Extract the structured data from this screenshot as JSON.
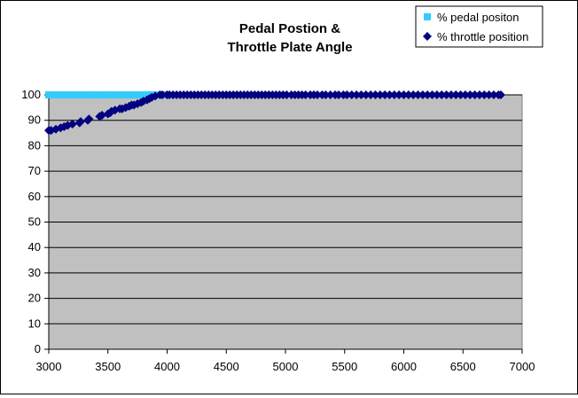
{
  "chart_data": {
    "type": "scatter",
    "title_lines": [
      "Pedal Postion &",
      "Throttle Plate Angle"
    ],
    "xlim": [
      3000,
      7000
    ],
    "ylim": [
      0,
      100
    ],
    "x_ticks": [
      "3000",
      "3500",
      "4000",
      "4500",
      "5000",
      "5500",
      "6000",
      "6500",
      "7000"
    ],
    "y_ticks": [
      "0",
      "10",
      "20",
      "30",
      "40",
      "50",
      "60",
      "70",
      "80",
      "90",
      "100"
    ],
    "grid": true,
    "legend_position": "top-right",
    "plot_bg": "#c0c0c0",
    "series": [
      {
        "name": "% pedal positon",
        "marker": "square",
        "color": "#33ccff",
        "x": [
          3000,
          3020,
          3040,
          3060,
          3080,
          3100,
          3120,
          3140,
          3160,
          3180,
          3200,
          3220,
          3260,
          3280,
          3300,
          3320,
          3340,
          3360,
          3420,
          3440,
          3460,
          3520,
          3540,
          3560,
          3600,
          3620,
          3640,
          3660,
          3680,
          3700,
          3720,
          3740,
          3760,
          3780,
          3800,
          3820,
          3840,
          3860,
          3880,
          3900,
          3920,
          3940,
          3960,
          3980,
          4000
        ],
        "y": [
          100,
          100,
          100,
          100,
          100,
          100,
          100,
          100,
          100,
          100,
          100,
          100,
          100,
          100,
          100,
          100,
          100,
          100,
          100,
          100,
          100,
          100,
          100,
          100,
          100,
          100,
          100,
          100,
          100,
          100,
          100,
          100,
          100,
          100,
          100,
          100,
          100,
          100,
          100,
          100,
          100,
          100,
          100,
          100,
          100
        ]
      },
      {
        "name": "% throttle position",
        "marker": "diamond",
        "color": "#000080",
        "x": [
          3000,
          3020,
          3060,
          3100,
          3130,
          3160,
          3200,
          3260,
          3270,
          3330,
          3340,
          3430,
          3450,
          3500,
          3520,
          3530,
          3560,
          3600,
          3620,
          3650,
          3680,
          3700,
          3720,
          3750,
          3780,
          3800,
          3830,
          3850,
          3870,
          3900,
          3940,
          3960,
          4000,
          4020,
          4050,
          4080,
          4110,
          4140,
          4170,
          4200,
          4230,
          4260,
          4290,
          4320,
          4350,
          4380,
          4410,
          4440,
          4470,
          4500,
          4530,
          4560,
          4590,
          4620,
          4650,
          4680,
          4710,
          4740,
          4770,
          4800,
          4830,
          4860,
          4890,
          4920,
          4950,
          4980,
          5010,
          5050,
          5080,
          5110,
          5140,
          5170,
          5210,
          5240,
          5270,
          5310,
          5340,
          5380,
          5420,
          5450,
          5490,
          5520,
          5560,
          5600,
          5640,
          5680,
          5720,
          5760,
          5800,
          5840,
          5880,
          5920,
          5960,
          6000,
          6040,
          6080,
          6120,
          6160,
          6200,
          6240,
          6280,
          6320,
          6360,
          6400,
          6440,
          6480,
          6520,
          6560,
          6600,
          6640,
          6680,
          6720,
          6760,
          6800,
          6820
        ],
        "y": [
          86,
          86,
          86.5,
          87,
          87.5,
          88,
          88.5,
          89,
          89.5,
          90,
          90.5,
          91.5,
          92,
          92.5,
          93,
          93.5,
          94,
          94.5,
          94.5,
          95,
          95.5,
          96,
          96,
          96.5,
          97,
          97.5,
          98,
          98.5,
          99,
          99.5,
          100,
          100,
          100,
          100,
          100,
          100,
          100,
          100,
          100,
          100,
          100,
          100,
          100,
          100,
          100,
          100,
          100,
          100,
          100,
          100,
          100,
          100,
          100,
          100,
          100,
          100,
          100,
          100,
          100,
          100,
          100,
          100,
          100,
          100,
          100,
          100,
          100,
          100,
          100,
          100,
          100,
          100,
          100,
          100,
          100,
          100,
          100,
          100,
          100,
          100,
          100,
          100,
          100,
          100,
          100,
          100,
          100,
          100,
          100,
          100,
          100,
          100,
          100,
          100,
          100,
          100,
          100,
          100,
          100,
          100,
          100,
          100,
          100,
          100,
          100,
          100,
          100,
          100,
          100,
          100,
          100,
          100,
          100,
          100,
          100
        ]
      }
    ]
  }
}
